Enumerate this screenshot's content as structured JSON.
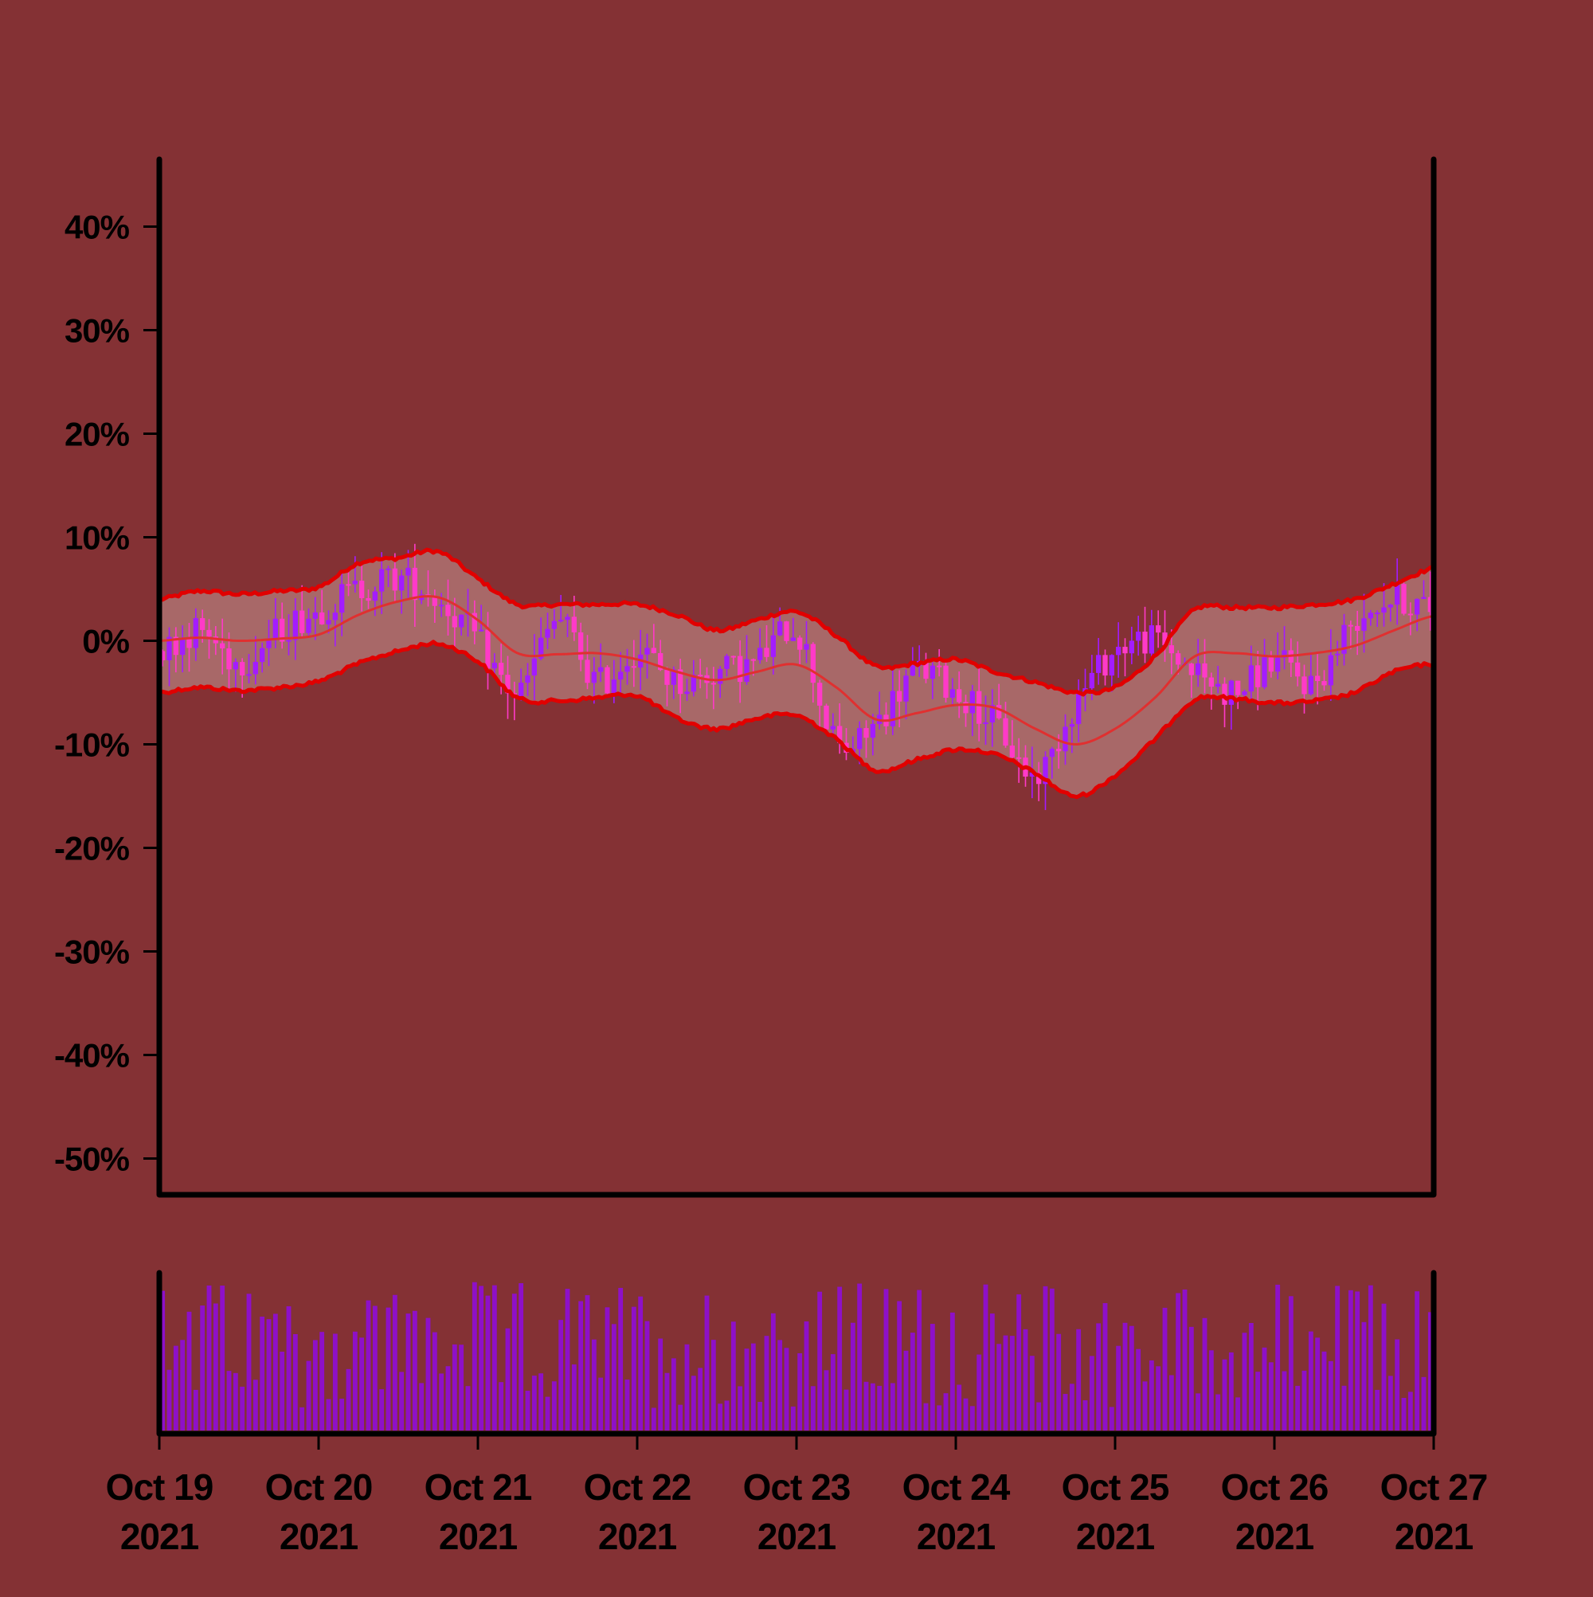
{
  "colors": {
    "background": "#843134",
    "band_fill": "#a86868",
    "band_edge": "#e10000",
    "middle_line": "#e03030",
    "candle_up": "#a31cff",
    "candle_down": "#ff3ac8",
    "volume": "#8e10c8",
    "axis": "#000000"
  },
  "chart_data": {
    "type": "candlestick",
    "title": "",
    "xlabel": "",
    "ylabel": "",
    "y_unit": "percent",
    "ylim": [
      -53.5,
      46.5
    ],
    "yticks": [
      -50,
      -40,
      -30,
      -20,
      -10,
      0,
      10,
      20,
      30,
      40
    ],
    "ytick_labels": [
      "-50%",
      "-40%",
      "-30%",
      "-20%",
      "-10%",
      "0%",
      "10%",
      "20%",
      "30%",
      "40%"
    ],
    "xlim": [
      "2021-10-19",
      "2021-10-27"
    ],
    "xticks": [
      {
        "month_day": "Oct 19",
        "year": "2021"
      },
      {
        "month_day": "Oct 20",
        "year": "2021"
      },
      {
        "month_day": "Oct 21",
        "year": "2021"
      },
      {
        "month_day": "Oct 22",
        "year": "2021"
      },
      {
        "month_day": "Oct 23",
        "year": "2021"
      },
      {
        "month_day": "Oct 24",
        "year": "2021"
      },
      {
        "month_day": "Oct 25",
        "year": "2021"
      },
      {
        "month_day": "Oct 26",
        "year": "2021"
      },
      {
        "month_day": "Oct 27",
        "year": "2021"
      }
    ],
    "grid": false,
    "legend": "none",
    "indicator": "bollinger bands",
    "series": [
      {
        "role": "close",
        "x_days": [
          0,
          0.25,
          0.5,
          0.75,
          1,
          1.25,
          1.5,
          1.75,
          2,
          2.25,
          2.5,
          2.75,
          3,
          3.25,
          3.5,
          3.75,
          4,
          4.25,
          4.5,
          4.75,
          5,
          5.25,
          5.5,
          5.75,
          6,
          6.25,
          6.5,
          6.75,
          7,
          7.25,
          7.5,
          7.75,
          8
        ],
        "values": [
          -1,
          1,
          -2,
          1,
          3,
          5,
          6,
          4,
          0,
          -5,
          2,
          -4,
          -1,
          -4,
          -3,
          -2,
          1,
          -10,
          -8,
          -3,
          -5,
          -8,
          -13,
          -6,
          -1,
          0,
          -3,
          -5,
          -2,
          -4,
          2,
          4,
          3
        ]
      },
      {
        "role": "upper_band",
        "x_days": [
          0,
          0.25,
          0.5,
          0.75,
          1,
          1.25,
          1.5,
          1.75,
          2,
          2.25,
          2.5,
          2.75,
          3,
          3.25,
          3.5,
          3.75,
          4,
          4.25,
          4.5,
          4.75,
          5,
          5.25,
          5.5,
          5.75,
          6,
          6.25,
          6.5,
          6.75,
          7,
          7.25,
          7.5,
          7.75,
          8
        ],
        "values": [
          4,
          4.8,
          4.5,
          4.8,
          5.2,
          7.5,
          8,
          8.6,
          6,
          3.5,
          3.5,
          3.5,
          3.5,
          2.5,
          1,
          2,
          2.8,
          0.5,
          -2.5,
          -2.2,
          -1.8,
          -3,
          -4,
          -5,
          -4.5,
          -1.5,
          3,
          3.2,
          3.2,
          3.5,
          4,
          5.5,
          7
        ]
      },
      {
        "role": "middle_band",
        "x_days": [
          0,
          0.25,
          0.5,
          0.75,
          1,
          1.25,
          1.5,
          1.75,
          2,
          2.25,
          2.5,
          2.75,
          3,
          3.25,
          3.5,
          3.75,
          4,
          4.25,
          4.5,
          4.75,
          5,
          5.25,
          5.5,
          5.75,
          6,
          6.25,
          6.5,
          6.75,
          7,
          7.25,
          7.5,
          7.75,
          8
        ],
        "values": [
          0,
          0.3,
          0,
          0.2,
          0.6,
          2.5,
          3.8,
          4.2,
          2,
          -1.2,
          -1.3,
          -1.2,
          -1.8,
          -3,
          -3.8,
          -3,
          -2.3,
          -4.5,
          -7.6,
          -7,
          -6.2,
          -6.5,
          -8.5,
          -10,
          -8.5,
          -5.5,
          -1.5,
          -1.2,
          -1.5,
          -1.2,
          -0.5,
          1,
          2.4
        ]
      },
      {
        "role": "lower_band",
        "x_days": [
          0,
          0.25,
          0.5,
          0.75,
          1,
          1.25,
          1.5,
          1.75,
          2,
          2.25,
          2.5,
          2.75,
          3,
          3.25,
          3.5,
          3.75,
          4,
          4.25,
          4.5,
          4.75,
          5,
          5.25,
          5.5,
          5.75,
          6,
          6.25,
          6.5,
          6.75,
          7,
          7.25,
          7.5,
          7.75,
          8
        ],
        "values": [
          -5,
          -4.5,
          -4.8,
          -4.5,
          -3.9,
          -2.2,
          -1,
          -0.3,
          -2,
          -5.5,
          -5.8,
          -5.5,
          -5.3,
          -7.5,
          -8.5,
          -7.5,
          -7.2,
          -9.5,
          -12.5,
          -11.5,
          -10.5,
          -11,
          -12.8,
          -15,
          -13,
          -9.5,
          -5.7,
          -5.6,
          -6,
          -5.8,
          -5,
          -3,
          -2.2
        ]
      }
    ],
    "volume_panel": {
      "type": "bar",
      "ylabel": "",
      "ytick_labels": [],
      "relative_max": 1.0
    }
  }
}
